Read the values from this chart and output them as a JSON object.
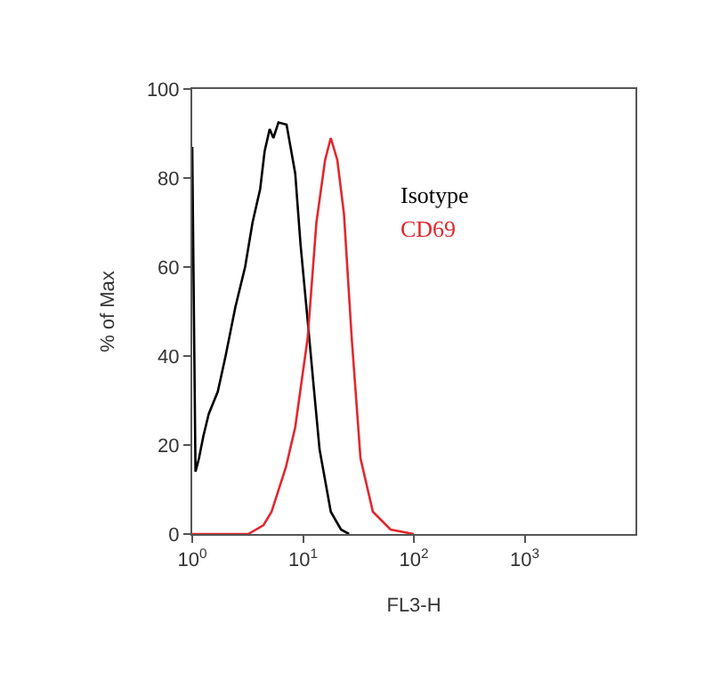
{
  "chart_data": {
    "type": "line",
    "xlabel": "FL3-H",
    "ylabel": "% of Max",
    "log": "x",
    "xlim": [
      1,
      10000
    ],
    "ylim": [
      0,
      100
    ],
    "xticks": [
      {
        "value": 1,
        "label": "10$^{0}$"
      },
      {
        "value": 10,
        "label": "10$^{1}$"
      },
      {
        "value": 100,
        "label": "10$^{2}$"
      },
      {
        "value": 1000,
        "label": "10$^{3}$"
      }
    ],
    "yticks": [
      0,
      20,
      40,
      60,
      80,
      100
    ],
    "legend": false,
    "marker": "none",
    "line_style": "solid",
    "series": [
      {
        "name": "Isotype",
        "color": "#000000",
        "x": [
          1.0,
          1.07,
          1.15,
          1.26,
          1.41,
          1.7,
          2.0,
          2.45,
          3.0,
          3.5,
          4.1,
          4.5,
          5.0,
          5.4,
          6.0,
          7.1,
          8.5,
          9.5,
          11,
          12.6,
          14.1,
          17.8,
          22,
          26
        ],
        "values": [
          87,
          14,
          17,
          22,
          27,
          32,
          40,
          51,
          60,
          70,
          77.5,
          86,
          91,
          89,
          92.5,
          92,
          81,
          65,
          48,
          32,
          19,
          5,
          1,
          0
        ]
      },
      {
        "name": "CD69",
        "color": "#e0282e",
        "x": [
          1.0,
          3.2,
          4.4,
          5.2,
          7.0,
          8.5,
          11,
          13.2,
          15.8,
          17.8,
          20.4,
          23.4,
          27.5,
          33,
          42.7,
          61.7,
          100
        ],
        "values": [
          0,
          0,
          2,
          5,
          15,
          24,
          44,
          70,
          84,
          89,
          84,
          72,
          44,
          17,
          5,
          1,
          0
        ]
      }
    ]
  }
}
